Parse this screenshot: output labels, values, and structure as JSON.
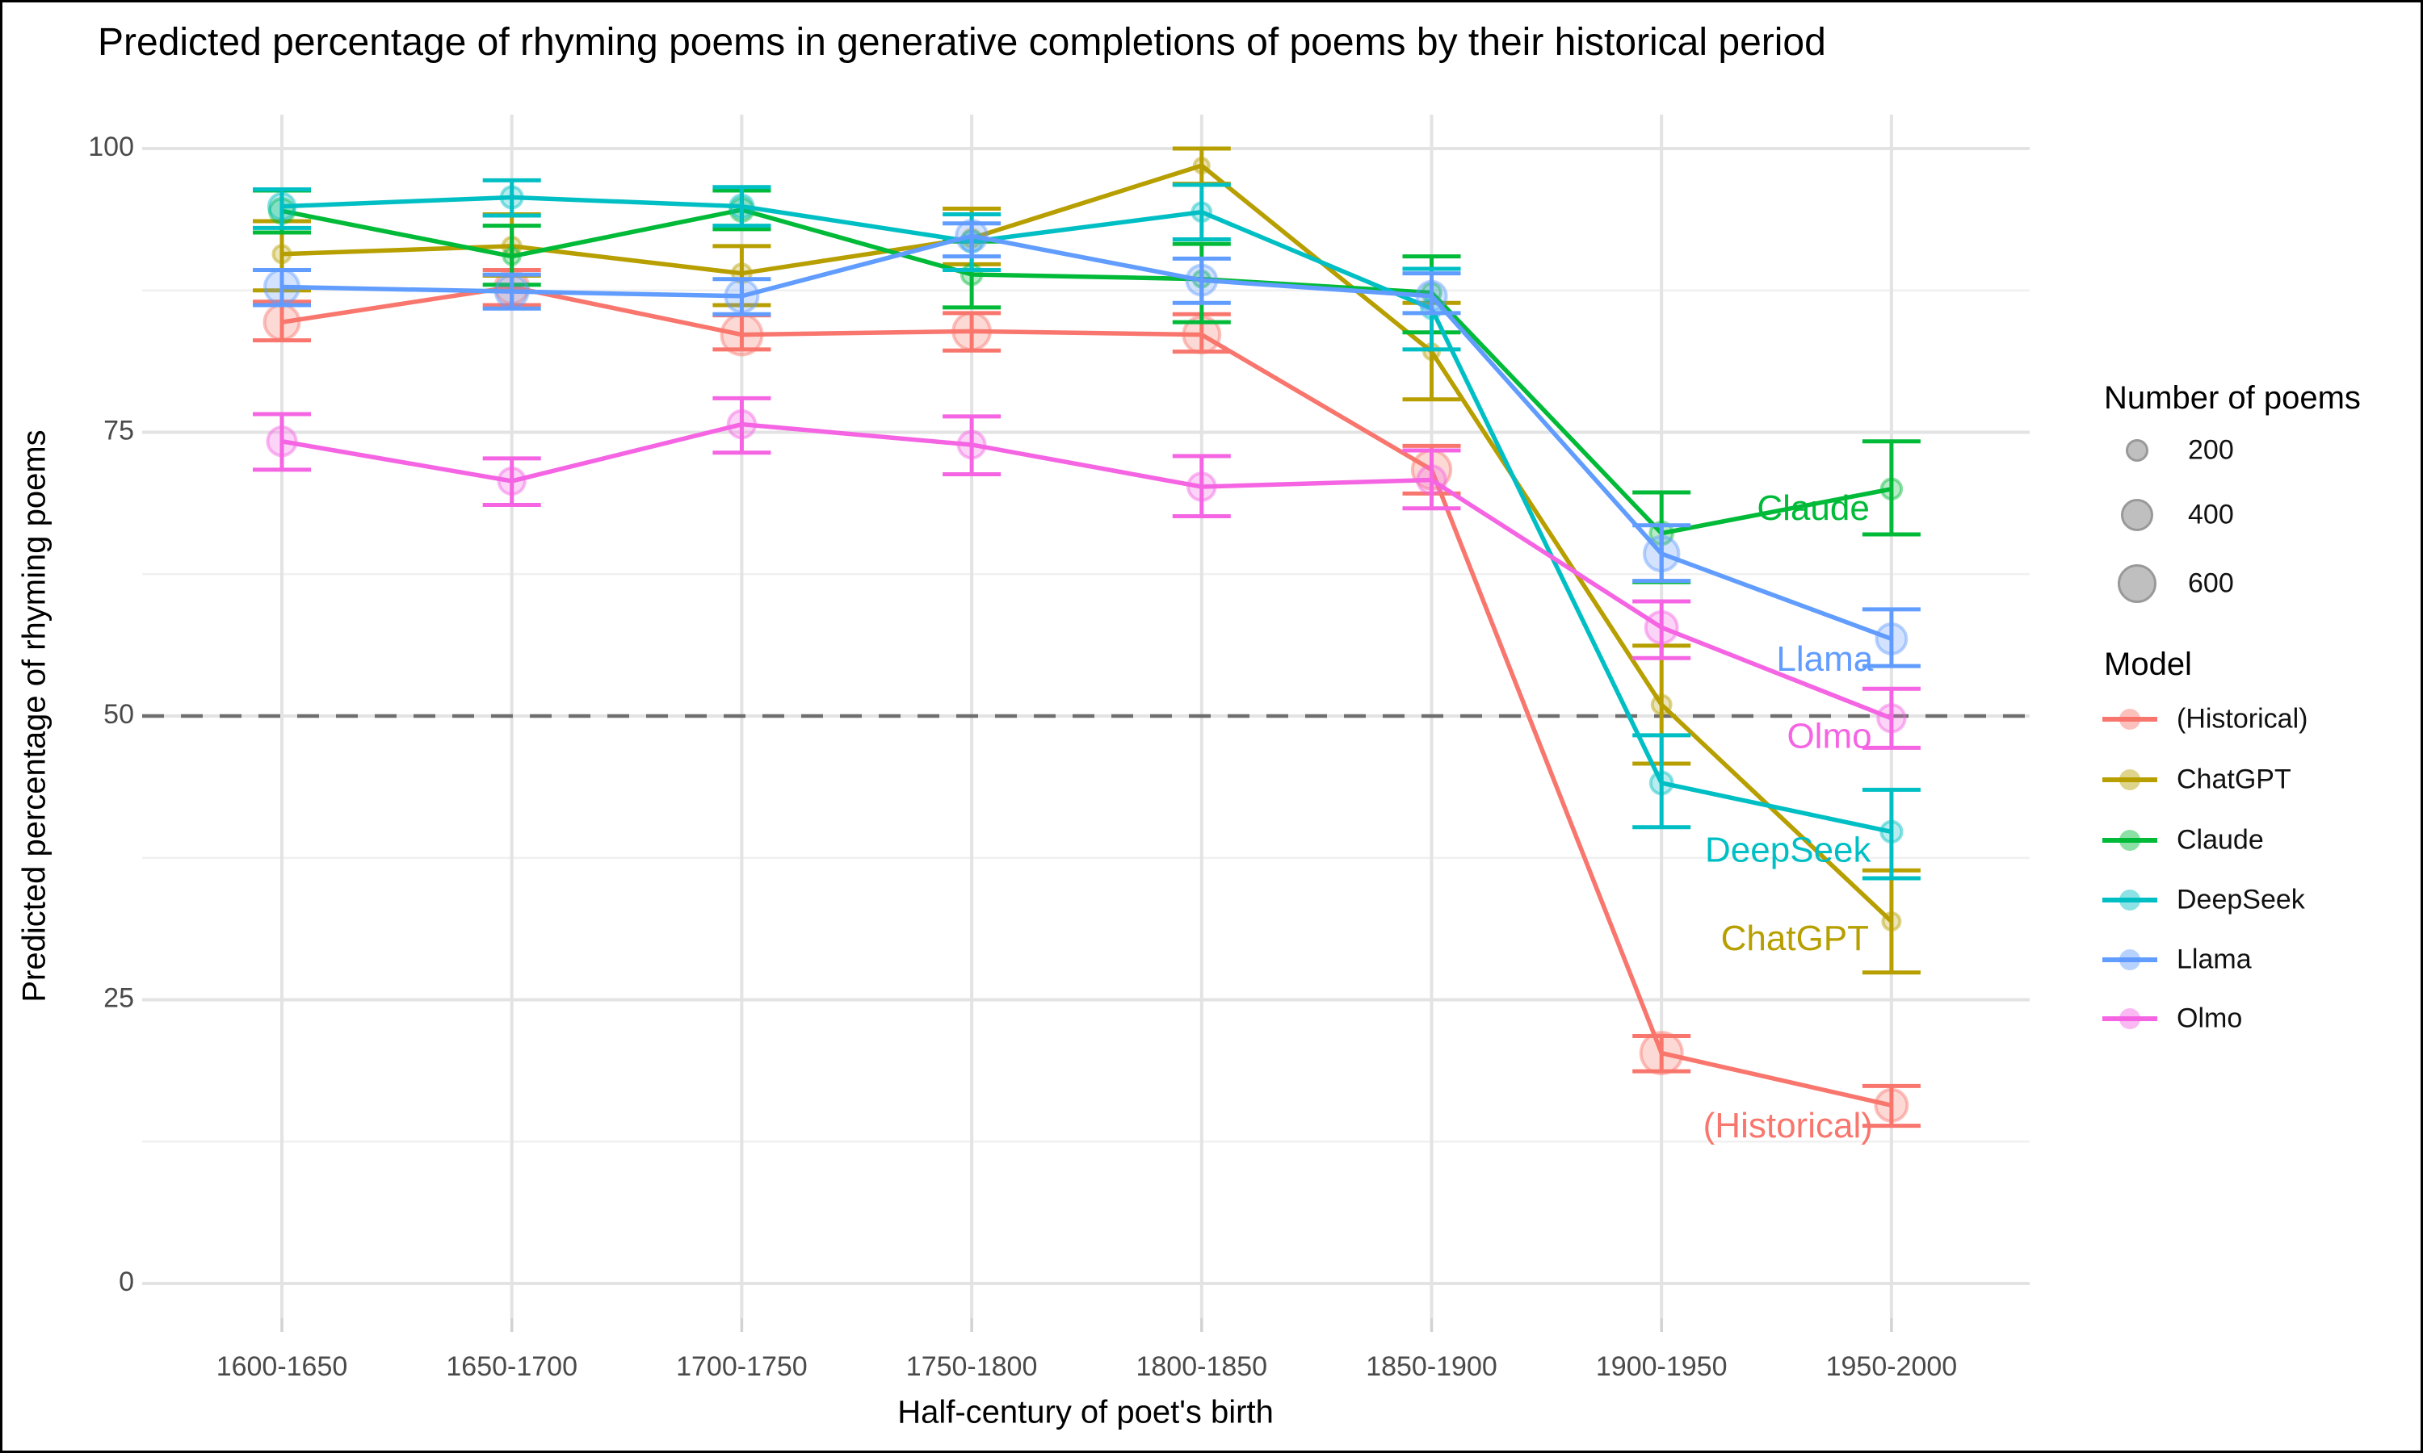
{
  "title": "Predicted percentage of rhyming poems in generative completions of poems by their historical period",
  "axes": {
    "x": {
      "label": "Half-century of poet's birth",
      "ticks": [
        "1600-1650",
        "1650-1700",
        "1700-1750",
        "1750-1800",
        "1800-1850",
        "1850-1900",
        "1900-1950",
        "1950-2000"
      ]
    },
    "y": {
      "label": "Predicted percentage of rhyming poems",
      "ticks": [
        0,
        25,
        50,
        75,
        100
      ],
      "minor_ticks": [
        12.5,
        37.5,
        62.5,
        87.5
      ],
      "range": [
        0,
        100
      ]
    }
  },
  "reference_line": {
    "y": 50,
    "style": "dashed",
    "color": "#6E6E6E"
  },
  "legend": {
    "size": {
      "title": "Number of poems",
      "entries": [
        {
          "label": "200",
          "n": 200
        },
        {
          "label": "400",
          "n": 400
        },
        {
          "label": "600",
          "n": 600
        }
      ],
      "swatch_color": "#AAAAAA"
    },
    "model": {
      "title": "Model",
      "entries": [
        {
          "label": "(Historical)",
          "color": "#F8766D"
        },
        {
          "label": "ChatGPT",
          "color": "#B79F00"
        },
        {
          "label": "Claude",
          "color": "#00BA38"
        },
        {
          "label": "DeepSeek",
          "color": "#00BFC4"
        },
        {
          "label": "Llama",
          "color": "#619CFF"
        },
        {
          "label": "Olmo",
          "color": "#F564E3"
        }
      ]
    }
  },
  "chart_data": {
    "type": "line",
    "categories": [
      "1600-1650",
      "1650-1700",
      "1700-1750",
      "1750-1800",
      "1800-1850",
      "1850-1900",
      "1900-1950",
      "1950-2000"
    ],
    "ylim": [
      0,
      100
    ],
    "grid": "major and minor horizontal, major vertical",
    "legend_position": "right",
    "series": [
      {
        "name": "(Historical)",
        "color": "#F8766D",
        "values": [
          84.7,
          87.8,
          83.6,
          83.9,
          83.6,
          71.7,
          20.3,
          15.7
        ],
        "err_low": [
          83.1,
          86.2,
          82.3,
          82.2,
          82.1,
          69.6,
          18.7,
          13.9
        ],
        "err_high": [
          86.5,
          89.3,
          85.3,
          85.5,
          85.4,
          73.8,
          21.8,
          17.4
        ],
        "n_poems_est": [
          460,
          420,
          620,
          520,
          500,
          560,
          650,
          380
        ]
      },
      {
        "name": "ChatGPT",
        "color": "#B79F00",
        "values": [
          90.7,
          91.4,
          89.0,
          92.1,
          98.5,
          82.1,
          51.0,
          31.9
        ],
        "err_low": [
          87.5,
          88.8,
          86.2,
          89.8,
          96.9,
          77.9,
          45.8,
          27.4
        ],
        "err_high": [
          93.6,
          94.2,
          91.4,
          94.7,
          100.0,
          86.4,
          56.2,
          36.4
        ],
        "n_poems_est": [
          110,
          120,
          130,
          120,
          80,
          90,
          130,
          110
        ]
      },
      {
        "name": "Claude",
        "color": "#00BA38",
        "values": [
          94.5,
          90.5,
          94.6,
          88.9,
          88.5,
          87.3,
          66.1,
          70.0
        ],
        "err_low": [
          92.6,
          88.0,
          92.9,
          86.0,
          84.7,
          83.8,
          61.8,
          66.0
        ],
        "err_high": [
          96.3,
          93.2,
          96.3,
          91.8,
          91.6,
          90.5,
          69.7,
          74.2
        ],
        "n_poems_est": [
          230,
          100,
          200,
          150,
          100,
          130,
          190,
          150
        ]
      },
      {
        "name": "DeepSeek",
        "color": "#00BFC4",
        "values": [
          94.9,
          95.7,
          94.9,
          91.8,
          94.4,
          85.9,
          44.1,
          39.8
        ],
        "err_low": [
          93.0,
          94.1,
          93.2,
          89.3,
          92.0,
          82.3,
          40.2,
          35.7
        ],
        "err_high": [
          96.4,
          97.2,
          96.6,
          94.2,
          96.8,
          89.4,
          48.3,
          43.5
        ],
        "n_poems_est": [
          260,
          170,
          200,
          170,
          130,
          150,
          180,
          160
        ]
      },
      {
        "name": "Llama",
        "color": "#619CFF",
        "values": [
          87.8,
          87.4,
          87.0,
          92.3,
          88.4,
          87.0,
          64.3,
          56.8
        ],
        "err_low": [
          86.2,
          85.9,
          85.4,
          90.5,
          86.4,
          85.5,
          61.9,
          54.4
        ],
        "err_high": [
          89.3,
          88.9,
          88.5,
          93.4,
          90.3,
          89.0,
          66.8,
          59.4
        ],
        "n_poems_est": [
          440,
          400,
          400,
          360,
          340,
          330,
          450,
          340
        ]
      },
      {
        "name": "Olmo",
        "color": "#F564E3",
        "values": [
          74.2,
          70.7,
          75.7,
          73.9,
          70.2,
          70.8,
          57.8,
          49.8
        ],
        "err_low": [
          71.7,
          68.6,
          73.2,
          71.3,
          67.6,
          68.3,
          55.1,
          47.2
        ],
        "err_high": [
          76.6,
          72.7,
          78.0,
          76.4,
          72.9,
          73.4,
          60.1,
          52.4
        ],
        "n_poems_est": [
          310,
          260,
          280,
          270,
          280,
          300,
          380,
          280
        ]
      }
    ],
    "direct_labels": [
      {
        "text": "Claude",
        "color": "#00BA38",
        "x": 6.66,
        "y": 68.1
      },
      {
        "text": "Llama",
        "color": "#619CFF",
        "x": 6.71,
        "y": 54.8
      },
      {
        "text": "Olmo",
        "color": "#F564E3",
        "x": 6.73,
        "y": 48.0
      },
      {
        "text": "DeepSeek",
        "color": "#00BFC4",
        "x": 6.55,
        "y": 38.0
      },
      {
        "text": "ChatGPT",
        "color": "#B79F00",
        "x": 6.58,
        "y": 30.2
      },
      {
        "text": "(Historical)",
        "color": "#F8766D",
        "x": 6.55,
        "y": 13.7
      }
    ]
  }
}
